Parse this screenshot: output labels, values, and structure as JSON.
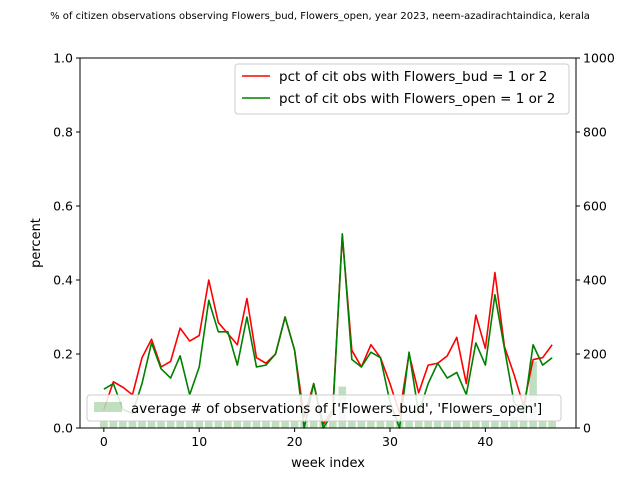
{
  "chart_data": {
    "type": "line",
    "title": "% of citizen observations observing Flowers_bud, Flowers_open, year 2023, neem-azadirachtaindica, kerala",
    "xlabel": "week index",
    "ylabel": "percent",
    "xlim": [
      -2.5,
      49.5
    ],
    "ylim": [
      0,
      1
    ],
    "y2lim": [
      0,
      1000
    ],
    "xticks": [
      0,
      10,
      20,
      30,
      40
    ],
    "yticks": [
      0.0,
      0.2,
      0.4,
      0.6,
      0.8,
      1.0
    ],
    "y2ticks": [
      0,
      200,
      400,
      600,
      800,
      1000
    ],
    "xtick_labels": [
      "0",
      "10",
      "20",
      "30",
      "40"
    ],
    "ytick_labels": [
      "0.0",
      "0.2",
      "0.4",
      "0.6",
      "0.8",
      "1.0"
    ],
    "y2tick_labels": [
      "0",
      "200",
      "400",
      "600",
      "800",
      "1000"
    ],
    "grid": false,
    "x": [
      0,
      1,
      2,
      3,
      4,
      5,
      6,
      7,
      8,
      9,
      10,
      11,
      12,
      13,
      14,
      15,
      16,
      17,
      18,
      19,
      20,
      21,
      22,
      23,
      24,
      25,
      26,
      27,
      28,
      29,
      30,
      31,
      32,
      33,
      34,
      35,
      36,
      37,
      38,
      39,
      40,
      41,
      42,
      43,
      44,
      45,
      46,
      47
    ],
    "series": [
      {
        "name": "pct of cit obs with Flowers_bud = 1 or 2",
        "kind": "line",
        "axis": "left",
        "color": "#ff0000",
        "values": [
          0.05,
          0.125,
          0.11,
          0.09,
          0.19,
          0.24,
          0.165,
          0.18,
          0.27,
          0.235,
          0.25,
          0.4,
          0.285,
          0.255,
          0.225,
          0.35,
          0.19,
          0.175,
          0.2,
          0.3,
          0.21,
          0.03,
          0.12,
          0.01,
          0.05,
          0.52,
          0.21,
          0.165,
          0.225,
          0.19,
          0.12,
          0.04,
          0.2,
          0.095,
          0.17,
          0.175,
          0.195,
          0.245,
          0.12,
          0.305,
          0.215,
          0.42,
          0.22,
          0.145,
          0.06,
          0.185,
          0.19,
          0.225
        ]
      },
      {
        "name": "pct of cit obs with Flowers_open = 1 or 2",
        "kind": "line",
        "axis": "left",
        "color": "#008000",
        "values": [
          0.105,
          0.12,
          0.05,
          0.04,
          0.12,
          0.23,
          0.16,
          0.135,
          0.195,
          0.09,
          0.165,
          0.345,
          0.26,
          0.26,
          0.17,
          0.3,
          0.165,
          0.17,
          0.2,
          0.3,
          0.21,
          0.0,
          0.12,
          0.0,
          0.04,
          0.525,
          0.185,
          0.165,
          0.205,
          0.19,
          0.07,
          0.0,
          0.205,
          0.04,
          0.12,
          0.175,
          0.135,
          0.15,
          0.09,
          0.23,
          0.17,
          0.36,
          0.215,
          0.07,
          0.04,
          0.225,
          0.17,
          0.19
        ]
      },
      {
        "name": "average # of observations of ['Flowers_bud', 'Flowers_open']",
        "kind": "bar",
        "axis": "right",
        "color": "#008000",
        "opacity": 0.25,
        "values": [
          20,
          20,
          20,
          20,
          20,
          20,
          20,
          20,
          20,
          20,
          20,
          20,
          20,
          20,
          20,
          20,
          20,
          20,
          20,
          20,
          20,
          20,
          20,
          20,
          20,
          112,
          20,
          20,
          20,
          20,
          20,
          20,
          20,
          20,
          20,
          20,
          20,
          20,
          20,
          20,
          20,
          20,
          20,
          30,
          40,
          180,
          20,
          20
        ]
      }
    ],
    "legends": [
      {
        "placement": "upper-right",
        "entries": [
          0,
          1
        ]
      },
      {
        "placement": "lower-left",
        "entries": [
          2
        ]
      }
    ]
  }
}
